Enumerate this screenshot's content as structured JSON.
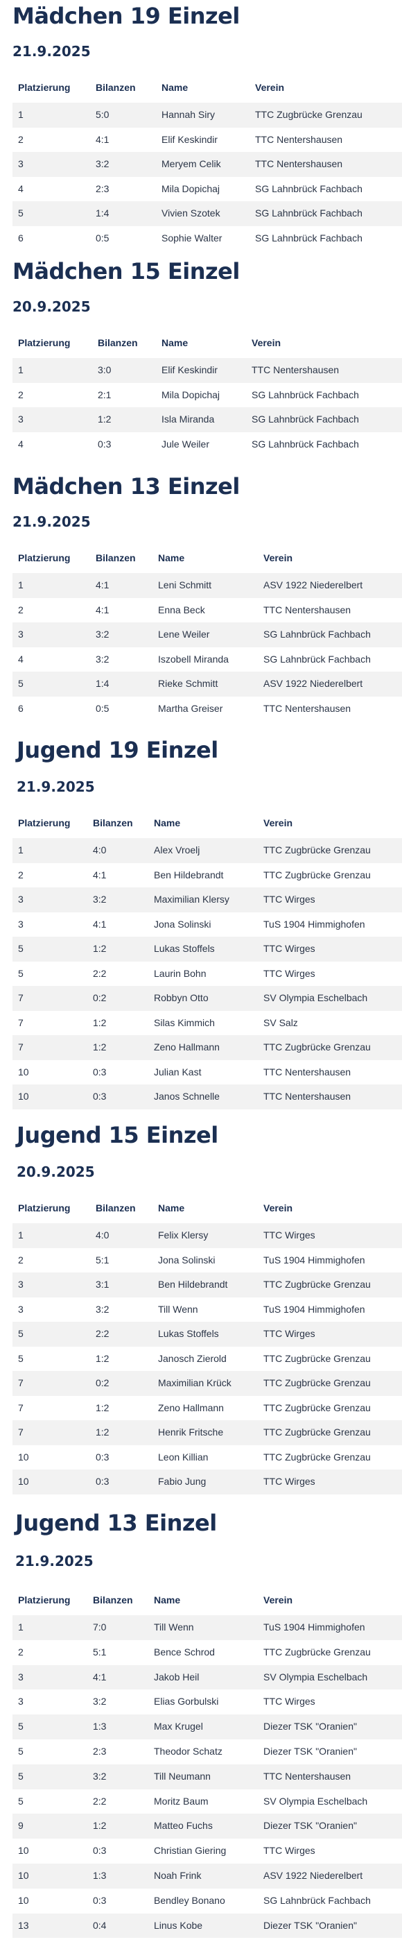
{
  "columns": {
    "placement": "Platzierung",
    "balance": "Bilanzen",
    "name": "Name",
    "club": "Verein"
  },
  "sections": [
    {
      "title": "Mädchen 19 Einzel",
      "date": "21.9.2025",
      "rows": [
        [
          "1",
          "5:0",
          "Hannah Siry",
          "TTC Zugbrücke Grenzau"
        ],
        [
          "2",
          "4:1",
          "Elif Keskindir",
          "TTC Nentershausen"
        ],
        [
          "3",
          "3:2",
          "Meryem Celik",
          "TTC Nentershausen"
        ],
        [
          "4",
          "2:3",
          "Mila Dopichaj",
          "SG Lahnbrück Fachbach"
        ],
        [
          "5",
          "1:4",
          "Vivien Szotek",
          "SG Lahnbrück Fachbach"
        ],
        [
          "6",
          "0:5",
          "Sophie Walter",
          "SG Lahnbrück Fachbach"
        ]
      ]
    },
    {
      "title": "Mädchen 15 Einzel",
      "date": "20.9.2025",
      "rows": [
        [
          "1",
          "3:0",
          "Elif Keskindir",
          "TTC Nentershausen"
        ],
        [
          "2",
          "2:1",
          "Mila Dopichaj",
          "SG Lahnbrück Fachbach"
        ],
        [
          "3",
          "1:2",
          "Isla Miranda",
          "SG Lahnbrück Fachbach"
        ],
        [
          "4",
          "0:3",
          "Jule Weiler",
          "SG Lahnbrück Fachbach"
        ]
      ]
    },
    {
      "title": "Mädchen 13 Einzel",
      "date": "21.9.2025",
      "rows": [
        [
          "1",
          "4:1",
          "Leni Schmitt",
          "ASV 1922 Niederelbert"
        ],
        [
          "2",
          "4:1",
          "Enna Beck",
          "TTC Nentershausen"
        ],
        [
          "3",
          "3:2",
          "Lene Weiler",
          "SG Lahnbrück Fachbach"
        ],
        [
          "4",
          "3:2",
          "Iszobell Miranda",
          "SG Lahnbrück Fachbach"
        ],
        [
          "5",
          "1:4",
          "Rieke Schmitt",
          "ASV 1922 Niederelbert"
        ],
        [
          "6",
          "0:5",
          "Martha Greiser",
          "TTC Nentershausen"
        ]
      ]
    },
    {
      "title": "Jugend 19 Einzel",
      "date": "21.9.2025",
      "rows": [
        [
          "1",
          "4:0",
          "Alex Vroelj",
          "TTC Zugbrücke Grenzau"
        ],
        [
          "2",
          "4:1",
          "Ben Hildebrandt",
          "TTC Zugbrücke Grenzau"
        ],
        [
          "3",
          "3:2",
          "Maximilian Klersy",
          "TTC Wirges"
        ],
        [
          "3",
          "4:1",
          "Jona Solinski",
          "TuS 1904 Himmighofen"
        ],
        [
          "5",
          "1:2",
          "Lukas Stoffels",
          "TTC Wirges"
        ],
        [
          "5",
          "2:2",
          "Laurin Bohn",
          "TTC Wirges"
        ],
        [
          "7",
          "0:2",
          "Robbyn Otto",
          "SV Olympia Eschelbach"
        ],
        [
          "7",
          "1:2",
          "Silas Kimmich",
          "SV Salz"
        ],
        [
          "7",
          "1:2",
          "Zeno Hallmann",
          "TTC Zugbrücke Grenzau"
        ],
        [
          "10",
          "0:3",
          "Julian Kast",
          "TTC Nentershausen"
        ],
        [
          "10",
          "0:3",
          "Janos Schnelle",
          "TTC Nentershausen"
        ]
      ]
    },
    {
      "title": "Jugend 15 Einzel",
      "date": "20.9.2025",
      "rows": [
        [
          "1",
          "4:0",
          "Felix Klersy",
          "TTC Wirges"
        ],
        [
          "2",
          "5:1",
          "Jona Solinski",
          "TuS 1904 Himmighofen"
        ],
        [
          "3",
          "3:1",
          "Ben Hildebrandt",
          "TTC Zugbrücke Grenzau"
        ],
        [
          "3",
          "3:2",
          "Till Wenn",
          "TuS 1904 Himmighofen"
        ],
        [
          "5",
          "2:2",
          "Lukas Stoffels",
          "TTC Wirges"
        ],
        [
          "5",
          "1:2",
          "Janosch Zierold",
          "TTC Zugbrücke Grenzau"
        ],
        [
          "7",
          "0:2",
          "Maximilian Krück",
          "TTC Zugbrücke Grenzau"
        ],
        [
          "7",
          "1:2",
          "Zeno Hallmann",
          "TTC Zugbrücke Grenzau"
        ],
        [
          "7",
          "1:2",
          "Henrik Fritsche",
          "TTC Zugbrücke Grenzau"
        ],
        [
          "10",
          "0:3",
          "Leon Killian",
          "TTC Zugbrücke Grenzau"
        ],
        [
          "10",
          "0:3",
          "Fabio Jung",
          "TTC Wirges"
        ]
      ]
    },
    {
      "title": "Jugend 13 Einzel",
      "date": "21.9.2025",
      "rows": [
        [
          "1",
          "7:0",
          "Till Wenn",
          "TuS 1904 Himmighofen"
        ],
        [
          "2",
          "5:1",
          "Bence Schrod",
          "TTC Zugbrücke Grenzau"
        ],
        [
          "3",
          "4:1",
          "Jakob Heil",
          "SV Olympia Eschelbach"
        ],
        [
          "3",
          "3:2",
          "Elias Gorbulski",
          "TTC Wirges"
        ],
        [
          "5",
          "1:3",
          "Max Krugel",
          "Diezer TSK \"Oranien\""
        ],
        [
          "5",
          "2:3",
          "Theodor Schatz",
          "Diezer TSK \"Oranien\""
        ],
        [
          "5",
          "3:2",
          "Till Neumann",
          "TTC Nentershausen"
        ],
        [
          "5",
          "2:2",
          "Moritz Baum",
          "SV Olympia Eschelbach"
        ],
        [
          "9",
          "1:2",
          "Matteo Fuchs",
          "Diezer TSK \"Oranien\""
        ],
        [
          "10",
          "0:3",
          "Christian Giering",
          "TTC Wirges"
        ],
        [
          "10",
          "1:3",
          "Noah Frink",
          "ASV 1922 Niederelbert"
        ],
        [
          "10",
          "0:3",
          "Bendley Bonano",
          "SG Lahnbrück Fachbach"
        ],
        [
          "13",
          "0:4",
          "Linus Kobe",
          "Diezer TSK \"Oranien\""
        ]
      ]
    }
  ]
}
